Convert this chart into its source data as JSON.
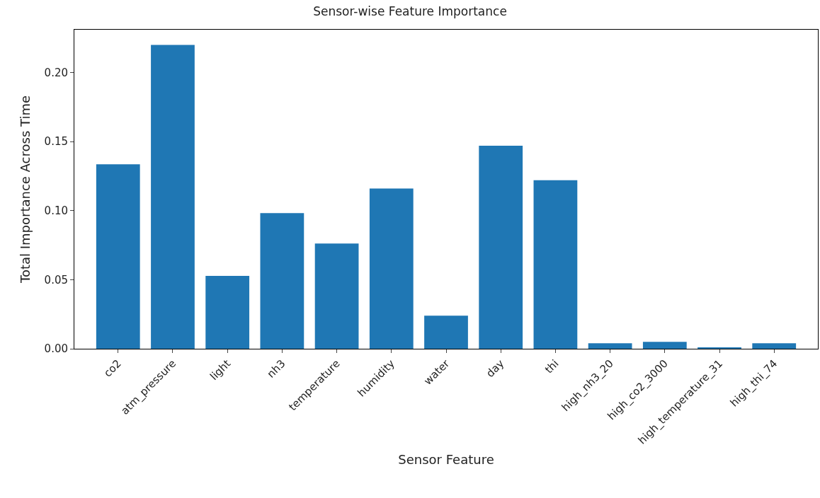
{
  "chart_data": {
    "type": "bar",
    "title": "Sensor-wise Feature Importance",
    "xlabel": "Sensor Feature",
    "ylabel": "Total Importance Across Time",
    "categories": [
      "co2",
      "atm_pressure",
      "light",
      "nh3",
      "temperature",
      "humidity",
      "water",
      "day",
      "thi",
      "high_nh3_20",
      "high_co2_3000",
      "high_temperature_31",
      "high_thi_74"
    ],
    "values": [
      0.1335,
      0.22,
      0.0527,
      0.0982,
      0.0762,
      0.116,
      0.024,
      0.147,
      0.122,
      0.004,
      0.005,
      0.001,
      0.004
    ],
    "color": "#1f77b4",
    "ylim": [
      0,
      0.231
    ],
    "yticks": [
      {
        "value": 0,
        "label": "0.00"
      },
      {
        "value": 0.05,
        "label": "0.05"
      },
      {
        "value": 0.1,
        "label": "0.10"
      },
      {
        "value": 0.15,
        "label": "0.15"
      },
      {
        "value": 0.2,
        "label": "0.20"
      }
    ],
    "legend": false
  }
}
